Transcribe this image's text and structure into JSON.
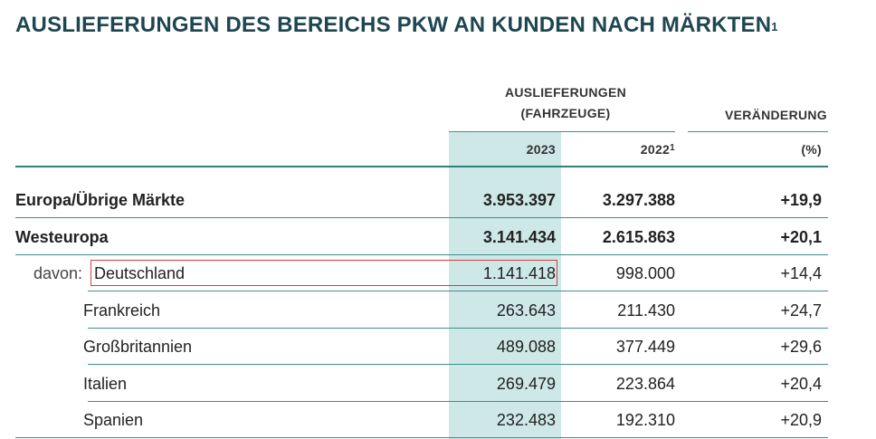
{
  "title": "AUSLIEFERUNGEN DES BEREICHS PKW AN KUNDEN NACH MÄRKTEN",
  "title_sup": "1",
  "header": {
    "group_line1": "AUSLIEFERUNGEN",
    "group_line2": "(FAHRZEUGE)",
    "change_label": "VERÄNDERUNG",
    "year1": "2023",
    "year2": "2022",
    "year2_sup": "1",
    "change_unit": "(%)"
  },
  "rows": [
    {
      "prefix": "",
      "label": "Europa/Übrige Märkte",
      "v2023": "3.953.397",
      "v2022": "3.297.388",
      "change": "+19,9"
    },
    {
      "prefix": "",
      "label": "Westeuropa",
      "v2023": "3.141.434",
      "v2022": "2.615.863",
      "change": "+20,1"
    },
    {
      "prefix": "davon:",
      "label": "Deutschland",
      "v2023": "1.141.418",
      "v2022": "998.000",
      "change": "+14,4"
    },
    {
      "prefix": "",
      "label": "Frankreich",
      "v2023": "263.643",
      "v2022": "211.430",
      "change": "+24,7"
    },
    {
      "prefix": "",
      "label": "Großbritannien",
      "v2023": "489.088",
      "v2022": "377.449",
      "change": "+29,6"
    },
    {
      "prefix": "",
      "label": "Italien",
      "v2023": "269.479",
      "v2022": "223.864",
      "change": "+20,4"
    },
    {
      "prefix": "",
      "label": "Spanien",
      "v2023": "232.483",
      "v2022": "192.310",
      "change": "+20,9"
    }
  ]
}
